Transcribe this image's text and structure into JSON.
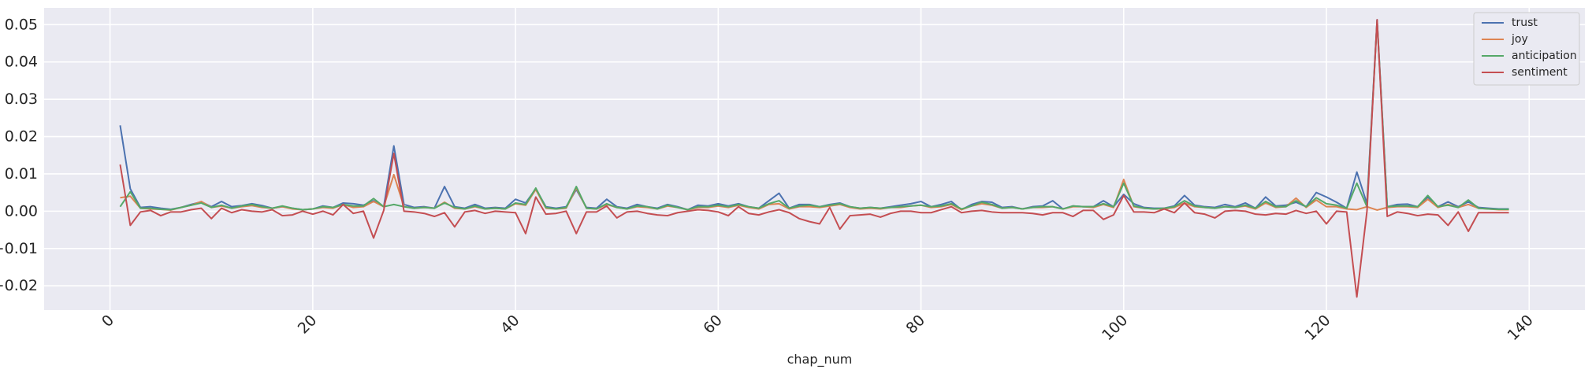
{
  "chart_data": {
    "type": "line",
    "title": "",
    "xlabel": "chap_num",
    "ylabel": "",
    "xlim": [
      -6.5,
      145.5
    ],
    "ylim": [
      -0.0265,
      0.0545
    ],
    "x_ticks": [
      0,
      20,
      40,
      60,
      80,
      100,
      120,
      140
    ],
    "y_ticks": [
      -0.02,
      -0.01,
      0.0,
      0.01,
      0.02,
      0.03,
      0.04,
      0.05
    ],
    "y_tick_labels": [
      "−0.02",
      "−0.01",
      "0.00",
      "0.01",
      "0.02",
      "0.03",
      "0.04",
      "0.05"
    ],
    "grid": true,
    "legend_position": "top-right",
    "x": [
      1,
      2,
      3,
      4,
      5,
      6,
      7,
      8,
      9,
      10,
      11,
      12,
      13,
      14,
      15,
      16,
      17,
      18,
      19,
      20,
      21,
      22,
      23,
      24,
      25,
      26,
      27,
      28,
      29,
      30,
      31,
      32,
      33,
      34,
      35,
      36,
      37,
      38,
      39,
      40,
      41,
      42,
      43,
      44,
      45,
      46,
      47,
      48,
      49,
      50,
      51,
      52,
      53,
      54,
      55,
      56,
      57,
      58,
      59,
      60,
      61,
      62,
      63,
      64,
      65,
      66,
      67,
      68,
      69,
      70,
      71,
      72,
      73,
      74,
      75,
      76,
      77,
      78,
      79,
      80,
      81,
      82,
      83,
      84,
      85,
      86,
      87,
      88,
      89,
      90,
      91,
      92,
      93,
      94,
      95,
      96,
      97,
      98,
      99,
      100,
      101,
      102,
      103,
      104,
      105,
      106,
      107,
      108,
      109,
      110,
      111,
      112,
      113,
      114,
      115,
      116,
      117,
      118,
      119,
      120,
      121,
      122,
      123,
      124,
      125,
      126,
      127,
      128,
      129,
      130,
      131,
      132,
      133,
      134,
      135,
      136,
      137,
      138
    ],
    "series": [
      {
        "name": "trust",
        "color": "#4c72b0",
        "values": [
          0.023,
          0.006,
          0.001,
          0.0012,
          0.0008,
          0.0005,
          0.001,
          0.0018,
          0.0025,
          0.0012,
          0.0026,
          0.0012,
          0.0015,
          0.002,
          0.0015,
          0.0008,
          0.0012,
          0.0008,
          0.0004,
          0.0006,
          0.0014,
          0.001,
          0.0022,
          0.002,
          0.0016,
          0.0028,
          0.0012,
          0.0175,
          0.0018,
          0.001,
          0.0012,
          0.0008,
          0.0066,
          0.0012,
          0.0008,
          0.0018,
          0.0008,
          0.001,
          0.0008,
          0.0032,
          0.0022,
          0.006,
          0.0012,
          0.0008,
          0.0012,
          0.0058,
          0.001,
          0.0008,
          0.0032,
          0.0012,
          0.0008,
          0.0018,
          0.0012,
          0.0008,
          0.0018,
          0.0012,
          0.0004,
          0.0016,
          0.0014,
          0.002,
          0.0014,
          0.002,
          0.0012,
          0.0008,
          0.0028,
          0.0048,
          0.0008,
          0.0018,
          0.0018,
          0.0012,
          0.0018,
          0.0022,
          0.0012,
          0.0008,
          0.001,
          0.0008,
          0.0012,
          0.0016,
          0.002,
          0.0026,
          0.0012,
          0.0018,
          0.0026,
          0.0004,
          0.0018,
          0.0026,
          0.0024,
          0.001,
          0.0012,
          0.0006,
          0.0012,
          0.0014,
          0.0028,
          0.0006,
          0.0014,
          0.0012,
          0.0012,
          0.0028,
          0.0012,
          0.0045,
          0.002,
          0.001,
          0.0008,
          0.0008,
          0.0014,
          0.0042,
          0.0016,
          0.0012,
          0.001,
          0.0018,
          0.0012,
          0.0022,
          0.0008,
          0.0038,
          0.0014,
          0.0016,
          0.0024,
          0.0012,
          0.005,
          0.0038,
          0.0024,
          0.0008,
          0.0105,
          0.002,
          0.0513,
          0.0012,
          0.0018,
          0.0019,
          0.0012,
          0.0038,
          0.0012,
          0.0025,
          0.0012,
          0.0025,
          0.001,
          0.0008,
          0.0006,
          0.0006
        ]
      },
      {
        "name": "joy",
        "color": "#dd8452",
        "values": [
          0.0036,
          0.004,
          0.0008,
          0.0006,
          0.0005,
          0.0003,
          0.001,
          0.0016,
          0.0026,
          0.001,
          0.0014,
          0.0008,
          0.0012,
          0.0015,
          0.001,
          0.0008,
          0.0012,
          0.0006,
          0.0004,
          0.0006,
          0.001,
          0.0008,
          0.0018,
          0.001,
          0.0012,
          0.0026,
          0.0012,
          0.0098,
          0.0012,
          0.0008,
          0.001,
          0.0008,
          0.0024,
          0.0008,
          0.0006,
          0.0012,
          0.0006,
          0.0008,
          0.0006,
          0.002,
          0.0016,
          0.0058,
          0.0008,
          0.0006,
          0.0008,
          0.0062,
          0.0008,
          0.0006,
          0.0018,
          0.001,
          0.0006,
          0.0012,
          0.001,
          0.0006,
          0.0014,
          0.001,
          0.0004,
          0.001,
          0.001,
          0.0014,
          0.001,
          0.0016,
          0.001,
          0.0006,
          0.0018,
          0.002,
          0.0006,
          0.0012,
          0.0012,
          0.001,
          0.0014,
          0.0018,
          0.001,
          0.0006,
          0.0008,
          0.0006,
          0.001,
          0.001,
          0.0014,
          0.0016,
          0.001,
          0.0012,
          0.0018,
          0.0004,
          0.0014,
          0.002,
          0.0016,
          0.0008,
          0.001,
          0.0006,
          0.001,
          0.001,
          0.0012,
          0.0006,
          0.0012,
          0.0012,
          0.001,
          0.0018,
          0.001,
          0.0085,
          0.0012,
          0.0008,
          0.0006,
          0.0006,
          0.001,
          0.0022,
          0.0012,
          0.001,
          0.0008,
          0.0012,
          0.001,
          0.0014,
          0.0006,
          0.0022,
          0.001,
          0.0012,
          0.0035,
          0.001,
          0.003,
          0.0012,
          0.0012,
          0.0006,
          0.0004,
          0.0012,
          0.0003,
          0.001,
          0.0012,
          0.0012,
          0.001,
          0.0032,
          0.001,
          0.0018,
          0.001,
          0.0018,
          0.0008,
          0.0006,
          0.0004,
          0.0004
        ]
      },
      {
        "name": "anticipation",
        "color": "#55a868",
        "values": [
          0.0012,
          0.0052,
          0.0008,
          0.0008,
          0.0005,
          0.0004,
          0.001,
          0.0016,
          0.0022,
          0.001,
          0.0016,
          0.0008,
          0.0014,
          0.0018,
          0.0012,
          0.0008,
          0.0014,
          0.0008,
          0.0004,
          0.0006,
          0.0012,
          0.001,
          0.0018,
          0.0014,
          0.0014,
          0.0034,
          0.0012,
          0.0018,
          0.0012,
          0.0008,
          0.001,
          0.0008,
          0.0022,
          0.001,
          0.0006,
          0.0014,
          0.0006,
          0.0008,
          0.0006,
          0.0022,
          0.0018,
          0.0062,
          0.001,
          0.0006,
          0.001,
          0.0066,
          0.0008,
          0.0006,
          0.002,
          0.001,
          0.0006,
          0.0014,
          0.0012,
          0.0006,
          0.0016,
          0.001,
          0.0004,
          0.0012,
          0.0012,
          0.0016,
          0.0012,
          0.0018,
          0.0012,
          0.0008,
          0.002,
          0.0028,
          0.0008,
          0.0014,
          0.0016,
          0.0012,
          0.0016,
          0.002,
          0.0012,
          0.0008,
          0.001,
          0.0008,
          0.001,
          0.0012,
          0.0014,
          0.0016,
          0.0012,
          0.0014,
          0.002,
          0.0006,
          0.0014,
          0.0024,
          0.0018,
          0.0008,
          0.001,
          0.0006,
          0.001,
          0.0012,
          0.0012,
          0.0006,
          0.0014,
          0.0012,
          0.0012,
          0.002,
          0.0012,
          0.0075,
          0.0014,
          0.0008,
          0.0006,
          0.0008,
          0.0012,
          0.0028,
          0.0014,
          0.001,
          0.0008,
          0.0012,
          0.001,
          0.0016,
          0.0008,
          0.0026,
          0.0012,
          0.0012,
          0.0028,
          0.0012,
          0.0036,
          0.002,
          0.0016,
          0.0008,
          0.0075,
          0.0012,
          0.051,
          0.0012,
          0.0014,
          0.0014,
          0.0012,
          0.0042,
          0.0012,
          0.0016,
          0.001,
          0.003,
          0.0008,
          0.0006,
          0.0005,
          0.0005
        ]
      },
      {
        "name": "sentiment",
        "color": "#c44e52",
        "values": [
          0.0125,
          -0.0038,
          -0.0002,
          0.0002,
          -0.0012,
          -0.0002,
          -0.0002,
          0.0004,
          0.0008,
          -0.002,
          0.0008,
          -0.0004,
          0.0004,
          0.0,
          -0.0002,
          0.0004,
          -0.0012,
          -0.001,
          0.0,
          -0.0008,
          0.0,
          -0.001,
          0.0018,
          -0.0006,
          0.0,
          -0.0072,
          0.0002,
          0.0155,
          0.0,
          -0.0002,
          -0.0006,
          -0.0014,
          -0.0004,
          -0.0042,
          -0.0002,
          0.0002,
          -0.0006,
          0.0,
          -0.0002,
          -0.0004,
          -0.006,
          0.0038,
          -0.0008,
          -0.0006,
          0.0,
          -0.006,
          -0.0002,
          -0.0002,
          0.0014,
          -0.0018,
          -0.0002,
          0.0,
          -0.0006,
          -0.001,
          -0.0012,
          -0.0004,
          0.0,
          0.0004,
          0.0002,
          -0.0002,
          -0.0012,
          0.0012,
          -0.0006,
          -0.001,
          -0.0002,
          0.0004,
          -0.0004,
          -0.002,
          -0.0028,
          -0.0034,
          0.001,
          -0.0048,
          -0.0012,
          -0.001,
          -0.0008,
          -0.0016,
          -0.0006,
          0.0,
          0.0,
          -0.0004,
          -0.0004,
          0.0004,
          0.0012,
          -0.0004,
          0.0,
          0.0002,
          -0.0002,
          -0.0004,
          -0.0004,
          -0.0004,
          -0.0006,
          -0.001,
          -0.0004,
          -0.0004,
          -0.0014,
          0.0002,
          0.0002,
          -0.0022,
          -0.001,
          0.0042,
          -0.0002,
          -0.0002,
          -0.0004,
          0.0006,
          -0.0004,
          0.0022,
          -0.0004,
          -0.0008,
          -0.0018,
          0.0,
          0.0002,
          0.0,
          -0.0008,
          -0.001,
          -0.0006,
          -0.0008,
          0.0002,
          -0.0006,
          0.0,
          -0.0034,
          0.0,
          -0.0002,
          -0.023,
          0.0,
          0.0513,
          -0.0014,
          -0.0002,
          -0.0006,
          -0.0012,
          -0.0008,
          -0.001,
          -0.0038,
          -0.0002,
          -0.0054,
          -0.0004,
          -0.0004,
          -0.0004,
          -0.0004
        ]
      }
    ]
  }
}
